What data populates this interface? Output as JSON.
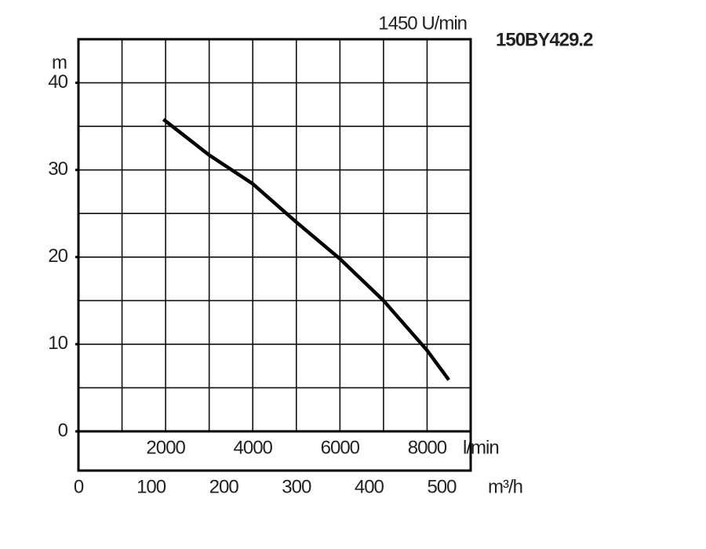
{
  "chart_data": {
    "type": "line",
    "title": "150BY429.2",
    "subtitle": "1450 U/min",
    "y_label": "m",
    "x_label": "l/min",
    "x2_label": "m³/h",
    "x": [
      1950,
      3000,
      4000,
      5000,
      6000,
      7000,
      8000,
      8500
    ],
    "values": [
      35.8,
      31.7,
      28.4,
      24,
      19.8,
      15,
      9.3,
      5.9
    ],
    "color": "#000000",
    "xlim": [
      0,
      9000
    ],
    "xticks": [
      2000,
      4000,
      6000,
      8000
    ],
    "x2lim": [
      0,
      540
    ],
    "x2ticks": [
      0,
      100,
      200,
      300,
      400,
      500
    ],
    "ylim": [
      0,
      45
    ],
    "yticks": [
      0,
      10,
      20,
      30,
      40
    ],
    "grid": true
  }
}
